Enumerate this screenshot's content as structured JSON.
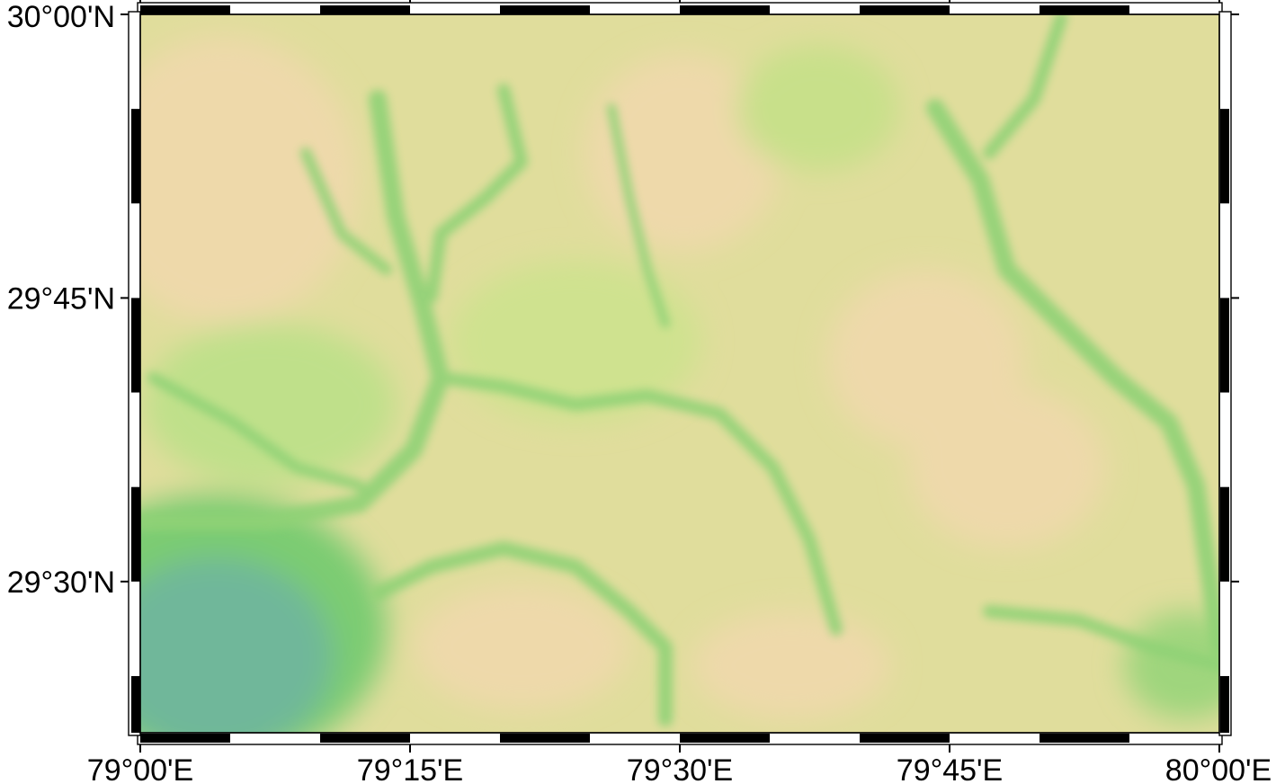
{
  "map": {
    "type": "relief-map",
    "extent": {
      "lon_range": [
        "79°00'E",
        "80°00'E"
      ],
      "lat_range": [
        "29°22'N",
        "30°00'N"
      ]
    },
    "colors": {
      "lowland": "#6fb79a",
      "valley": "#7ccc72",
      "midland": "#bfe08a",
      "upland": "#e0dd9c",
      "highland": "#eed9aa",
      "frame": "#000000",
      "background": "#ffffff"
    },
    "x_axis": {
      "ticks": [
        {
          "label": "79°00'E",
          "lon": 79.0
        },
        {
          "label": "79°15'E",
          "lon": 79.25
        },
        {
          "label": "79°30'E",
          "lon": 79.5
        },
        {
          "label": "79°45'E",
          "lon": 79.75
        },
        {
          "label": "80°00'E",
          "lon": 80.0
        }
      ]
    },
    "y_axis": {
      "ticks": [
        {
          "label": "30°00'N",
          "lat": 30.0
        },
        {
          "label": "29°45'N",
          "lat": 29.75
        },
        {
          "label": "29°30'N",
          "lat": 29.5
        }
      ]
    },
    "frame_style": "fancy-checkered"
  }
}
